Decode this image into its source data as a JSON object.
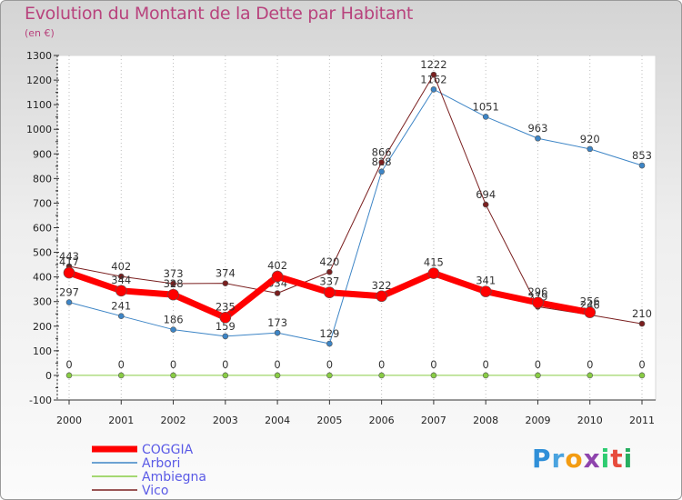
{
  "title": "Evolution du Montant de la Dette par Habitant",
  "subtitle": "(en €)",
  "logo": "Proxiti",
  "chart_data": {
    "type": "line",
    "title": "Evolution du Montant de la Dette par Habitant",
    "subtitle": "(en €)",
    "ylim": [
      -100,
      1300
    ],
    "y_ticks": [
      "-100",
      "0",
      "100",
      "200",
      "300",
      "400",
      "500",
      "600",
      "700",
      "800",
      "900",
      "1000",
      "1100",
      "1200",
      "1300"
    ],
    "x": [
      "2000",
      "2001",
      "2002",
      "2003",
      "2004",
      "2005",
      "2006",
      "2007",
      "2008",
      "2009",
      "2010",
      "2011"
    ],
    "grid": "vertical dotted",
    "legend_position": "bottom-left",
    "series": [
      {
        "name": "COGGIA",
        "color": "#ff0000",
        "width": 7,
        "values": [
          417,
          344,
          328,
          235,
          402,
          337,
          322,
          415,
          341,
          296,
          256,
          null
        ]
      },
      {
        "name": "Arbori",
        "color": "#3d85c6",
        "width": 1,
        "values": [
          297,
          241,
          186,
          159,
          173,
          129,
          828,
          1162,
          1051,
          963,
          920,
          853
        ]
      },
      {
        "name": "Ambiegna",
        "color": "#88cc44",
        "width": 1,
        "values": [
          0,
          0,
          0,
          0,
          0,
          0,
          0,
          0,
          0,
          0,
          0,
          0
        ]
      },
      {
        "name": "Vico",
        "color": "#7a1f1f",
        "width": 1,
        "values": [
          443,
          402,
          373,
          374,
          334,
          420,
          866,
          1222,
          694,
          279,
          246,
          210
        ]
      }
    ]
  }
}
